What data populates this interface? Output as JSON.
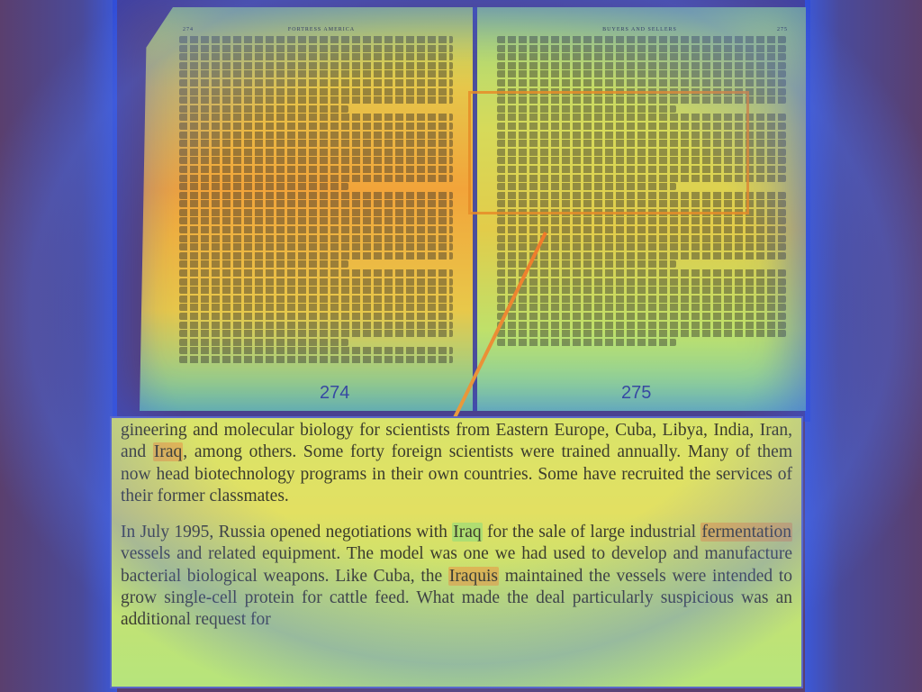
{
  "book": {
    "left_page": {
      "running_head_number": "274",
      "running_head_title": "FORTRESS AMERICA",
      "page_number": "274"
    },
    "right_page": {
      "running_head_title": "BUYERS AND SELLERS",
      "running_head_number": "275",
      "page_number": "275"
    }
  },
  "zoom": {
    "paragraph1": {
      "prefix": "gineering and molecular biology for scientists from Eastern Europe, Cuba, Libya, India, Iran, and ",
      "highlight": "Iraq",
      "suffix": ", among others. Some forty foreign scientists were trained annually. Many of them now head biotechnology programs in their own countries. Some have recruited the services of their former classmates."
    },
    "paragraph2": {
      "part1": "In July 1995, Russia opened negotiations with ",
      "hl1": "Iraq",
      "part2": " for the sale of large industrial ",
      "hl2": "fermentation",
      "part3": " vessels and related equipment. The model was one we had used to develop and manufacture bacterial biological weapons. Like Cuba, the ",
      "hl3": "Iraquis",
      "part4": " maintained the vessels were intended to grow single-cell protein for cattle feed. What made the deal particularly suspicious was an additional request for"
    }
  },
  "colors": {
    "highlight": "#f0963c",
    "accent_box": "#e68c28",
    "heat_blue": "#3b58d8"
  }
}
